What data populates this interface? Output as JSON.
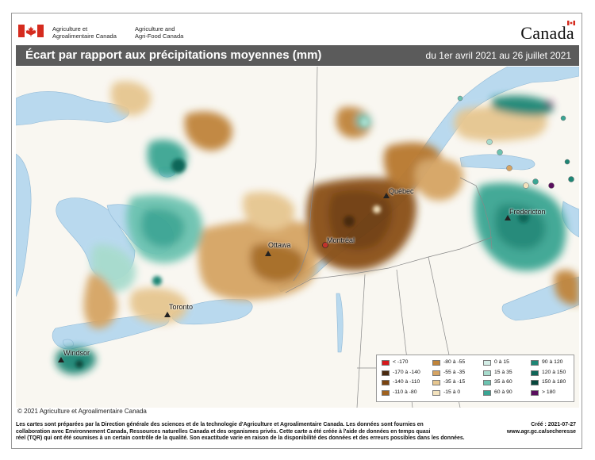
{
  "header": {
    "agency_fr_line1": "Agriculture et",
    "agency_fr_line2": "Agroalimentaire Canada",
    "agency_en_line1": "Agriculture and",
    "agency_en_line2": "Agri-Food Canada",
    "wordmark": "Canada"
  },
  "title_bar": {
    "title": "Écart par rapport aux précipitations moyennes (mm)",
    "period": "du 1er avril 2021 au 26 juillet 2021"
  },
  "map": {
    "cities": [
      {
        "name": "Québec"
      },
      {
        "name": "Ottawa"
      },
      {
        "name": "Montréal"
      },
      {
        "name": "Toronto"
      },
      {
        "name": "Windsor"
      },
      {
        "name": "Fredericton"
      }
    ]
  },
  "legend": {
    "items": [
      {
        "label": "< -170",
        "color": "#d7191c"
      },
      {
        "label": "-170 à -140",
        "color": "#4a2a10"
      },
      {
        "label": "-140 à -110",
        "color": "#7a4310"
      },
      {
        "label": "-110 à -80",
        "color": "#a0621e"
      },
      {
        "label": "-80 à -55",
        "color": "#c0843a"
      },
      {
        "label": "-55 à -35",
        "color": "#d6a463"
      },
      {
        "label": "-35 à -15",
        "color": "#e6c690"
      },
      {
        "label": "-15 à 0",
        "color": "#f3e2bd"
      },
      {
        "label": "0 à 15",
        "color": "#d3ede6"
      },
      {
        "label": "15 à 35",
        "color": "#a8dccd"
      },
      {
        "label": "35 à 60",
        "color": "#6cc3b0"
      },
      {
        "label": "60 à 90",
        "color": "#3aa593"
      },
      {
        "label": "90 à 120",
        "color": "#1e8675"
      },
      {
        "label": "120 à 150",
        "color": "#0f6658"
      },
      {
        "label": "150 à 180",
        "color": "#07483d"
      },
      {
        "label": "> 180",
        "color": "#5a0f5e"
      }
    ]
  },
  "colors": {
    "water": "#b9d9ee",
    "land_background": "#f9f7f1",
    "title_bar": "#5b5b5b",
    "flag_red": "#d52b1e"
  },
  "copyright": "© 2021 Agriculture et Agroalimentaire Canada",
  "footer": {
    "note_line1": "Les cartes sont préparées par la Direction générale des sciences et de la technologie d'Agriculture et Agroalimentaire Canada. Les données sont fournies en",
    "note_line2": "collaboration avec Environnement Canada, Ressources naturelles Canada et des organismes privés. Cette carte a été créée à l'aide de données en temps quasi",
    "note_line3": "réel (TQR) qui ont été soumises à un certain contrôle de la qualité. Son exactitude varie en raison de la disponibilité des données et des erreurs possibles dans les données.",
    "created": "Créé : 2021-07-27",
    "website": "www.agr.gc.ca/secheresse"
  }
}
